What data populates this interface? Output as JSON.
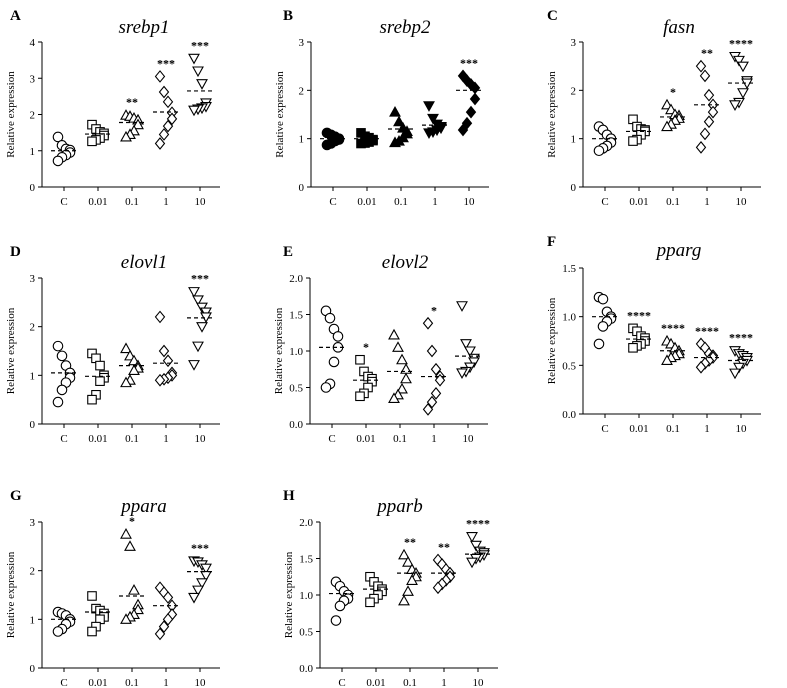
{
  "figure": {
    "chart_data": [
      {
        "type": "scatter",
        "letter": "A",
        "title": "srebp1",
        "ylabel": "Relative expression",
        "categories": [
          "C",
          "0.01",
          "0.1",
          "1",
          "10"
        ],
        "ylim": [
          0,
          4
        ],
        "yticks": [
          0,
          1,
          2,
          3,
          4
        ],
        "ytick_labels": [
          "0",
          "1",
          "2",
          "3",
          "4"
        ],
        "markers": [
          "circle",
          "square",
          "triangle-up",
          "diamond",
          "triangle-down"
        ],
        "fills": [
          "none",
          "none",
          "none",
          "none",
          "none"
        ],
        "points": [
          [
            1.38,
            1.15,
            1.05,
            1.02,
            0.95,
            0.88,
            0.82,
            0.72
          ],
          [
            1.72,
            1.6,
            1.52,
            1.48,
            1.42,
            1.35,
            1.3,
            1.26
          ],
          [
            1.98,
            1.95,
            1.9,
            1.85,
            1.72,
            1.55,
            1.45,
            1.38
          ],
          [
            3.05,
            2.62,
            2.35,
            2.05,
            1.88,
            1.68,
            1.45,
            1.2
          ],
          [
            3.55,
            3.2,
            2.85,
            2.32,
            2.22,
            2.18,
            2.15,
            2.12
          ]
        ],
        "means": [
          1.0,
          1.46,
          1.78,
          2.07,
          2.65
        ],
        "significance": [
          "",
          "",
          "**",
          "***",
          "***"
        ]
      },
      {
        "type": "scatter",
        "letter": "B",
        "title": "srebp2",
        "ylabel": "Relative expression",
        "categories": [
          "C",
          "0.01",
          "0.1",
          "1",
          "10"
        ],
        "ylim": [
          0,
          3
        ],
        "yticks": [
          0,
          1,
          2,
          3
        ],
        "ytick_labels": [
          "0",
          "1",
          "2",
          "3"
        ],
        "markers": [
          "circle",
          "square",
          "triangle-up",
          "triangle-down",
          "diamond"
        ],
        "fills": [
          "#000",
          "#000",
          "#000",
          "#000",
          "#000"
        ],
        "points": [
          [
            1.12,
            1.08,
            1.04,
            1.0,
            0.98,
            0.95,
            0.9,
            0.87
          ],
          [
            1.12,
            1.05,
            1.02,
            0.98,
            0.96,
            0.93,
            0.91,
            0.9
          ],
          [
            1.55,
            1.35,
            1.22,
            1.15,
            1.1,
            1.02,
            0.95,
            0.92
          ],
          [
            1.68,
            1.42,
            1.3,
            1.25,
            1.22,
            1.18,
            1.14,
            1.12
          ],
          [
            2.3,
            2.2,
            2.12,
            2.05,
            1.82,
            1.55,
            1.32,
            1.18
          ]
        ],
        "means": [
          1.0,
          1.0,
          1.2,
          1.28,
          2.0
        ],
        "significance": [
          "",
          "",
          "",
          "",
          "***"
        ]
      },
      {
        "type": "scatter",
        "letter": "C",
        "title": "fasn",
        "ylabel": "Relative expression",
        "categories": [
          "C",
          "0.01",
          "0.1",
          "1",
          "10"
        ],
        "ylim": [
          0,
          3
        ],
        "yticks": [
          0,
          1,
          2,
          3
        ],
        "ytick_labels": [
          "0",
          "1",
          "2",
          "3"
        ],
        "markers": [
          "circle",
          "square",
          "triangle-up",
          "diamond",
          "triangle-down"
        ],
        "fills": [
          "none",
          "none",
          "none",
          "none",
          "none"
        ],
        "points": [
          [
            1.25,
            1.18,
            1.08,
            1.0,
            0.92,
            0.85,
            0.8,
            0.75
          ],
          [
            1.4,
            1.25,
            1.2,
            1.18,
            1.15,
            1.08,
            0.98,
            0.95
          ],
          [
            1.7,
            1.6,
            1.5,
            1.48,
            1.42,
            1.38,
            1.3,
            1.25
          ],
          [
            2.5,
            2.3,
            1.9,
            1.7,
            1.55,
            1.35,
            1.1,
            0.82
          ],
          [
            2.7,
            2.62,
            2.5,
            2.2,
            2.15,
            1.95,
            1.75,
            1.7
          ]
        ],
        "means": [
          1.0,
          1.15,
          1.45,
          1.7,
          2.15
        ],
        "significance": [
          "",
          "",
          "*",
          "**",
          "****"
        ]
      },
      {
        "type": "scatter",
        "letter": "D",
        "title": "elovl1",
        "ylabel": "Relative expression",
        "categories": [
          "C",
          "0.01",
          "0.1",
          "1",
          "10"
        ],
        "ylim": [
          0,
          3
        ],
        "yticks": [
          0,
          1,
          2,
          3
        ],
        "ytick_labels": [
          "0",
          "1",
          "2",
          "3"
        ],
        "markers": [
          "circle",
          "square",
          "triangle-up",
          "diamond",
          "triangle-down"
        ],
        "fills": [
          "none",
          "none",
          "none",
          "none",
          "none"
        ],
        "points": [
          [
            1.6,
            1.4,
            1.2,
            1.05,
            0.95,
            0.85,
            0.7,
            0.45
          ],
          [
            1.45,
            1.35,
            1.2,
            1.0,
            0.95,
            0.88,
            0.6,
            0.5
          ],
          [
            1.55,
            1.4,
            1.3,
            1.2,
            1.15,
            1.1,
            0.9,
            0.85
          ],
          [
            2.2,
            1.5,
            1.3,
            1.05,
            1.0,
            0.95,
            0.92,
            0.9
          ],
          [
            2.72,
            2.55,
            2.4,
            2.3,
            2.2,
            2.0,
            1.6,
            1.22
          ]
        ],
        "means": [
          1.05,
          0.98,
          1.2,
          1.25,
          2.18
        ],
        "significance": [
          "",
          "",
          "",
          "",
          "***"
        ]
      },
      {
        "type": "scatter",
        "letter": "E",
        "title": "elovl2",
        "ylabel": "Relative expression",
        "categories": [
          "C",
          "0.01",
          "0.1",
          "1",
          "10"
        ],
        "ylim": [
          0,
          2
        ],
        "yticks": [
          0,
          0.5,
          1,
          1.5,
          2
        ],
        "ytick_labels": [
          "0.0",
          "0.5",
          "1.0",
          "1.5",
          "2.0"
        ],
        "markers": [
          "circle",
          "square",
          "triangle-up",
          "diamond",
          "triangle-down"
        ],
        "fills": [
          "none",
          "none",
          "none",
          "none",
          "none"
        ],
        "points": [
          [
            1.55,
            1.45,
            1.3,
            1.2,
            1.05,
            0.85,
            0.55,
            0.5
          ],
          [
            0.88,
            0.72,
            0.65,
            0.62,
            0.58,
            0.5,
            0.42,
            0.38
          ],
          [
            1.22,
            1.05,
            0.88,
            0.75,
            0.62,
            0.48,
            0.4,
            0.35
          ],
          [
            1.38,
            1.0,
            0.75,
            0.65,
            0.6,
            0.42,
            0.3,
            0.2
          ],
          [
            1.62,
            1.1,
            1.0,
            0.9,
            0.85,
            0.78,
            0.72,
            0.7
          ]
        ],
        "means": [
          1.05,
          0.6,
          0.72,
          0.65,
          0.93
        ],
        "significance": [
          "",
          "*",
          "",
          "*",
          ""
        ]
      },
      {
        "type": "scatter",
        "letter": "F",
        "title": "pparg",
        "ylabel": "Relative expression",
        "categories": [
          "C",
          "0.01",
          "0.1",
          "1",
          "10"
        ],
        "ylim": [
          0,
          1.5
        ],
        "yticks": [
          0,
          0.5,
          1,
          1.5
        ],
        "ytick_labels": [
          "0.0",
          "0.5",
          "1.0",
          "1.5"
        ],
        "markers": [
          "circle",
          "square",
          "triangle-up",
          "diamond",
          "triangle-down"
        ],
        "fills": [
          "none",
          "none",
          "none",
          "none",
          "none"
        ],
        "points": [
          [
            1.2,
            1.18,
            1.05,
            1.0,
            0.98,
            0.95,
            0.9,
            0.72
          ],
          [
            0.88,
            0.85,
            0.8,
            0.78,
            0.75,
            0.72,
            0.7,
            0.68
          ],
          [
            0.75,
            0.72,
            0.68,
            0.65,
            0.62,
            0.6,
            0.58,
            0.55
          ],
          [
            0.72,
            0.68,
            0.62,
            0.6,
            0.58,
            0.55,
            0.52,
            0.48
          ],
          [
            0.65,
            0.62,
            0.6,
            0.58,
            0.55,
            0.52,
            0.48,
            0.42
          ]
        ],
        "means": [
          1.0,
          0.77,
          0.65,
          0.58,
          0.55
        ],
        "significance": [
          "",
          "****",
          "****",
          "****",
          "****"
        ]
      },
      {
        "type": "scatter",
        "letter": "G",
        "title": "ppara",
        "ylabel": "Relative expression",
        "categories": [
          "C",
          "0.01",
          "0.1",
          "1",
          "10"
        ],
        "ylim": [
          0,
          3
        ],
        "yticks": [
          0,
          1,
          2,
          3
        ],
        "ytick_labels": [
          "0",
          "1",
          "2",
          "3"
        ],
        "markers": [
          "circle",
          "square",
          "triangle-up",
          "diamond",
          "triangle-down"
        ],
        "fills": [
          "none",
          "none",
          "none",
          "none",
          "none"
        ],
        "points": [
          [
            1.15,
            1.12,
            1.08,
            1.0,
            0.95,
            0.9,
            0.8,
            0.75
          ],
          [
            1.48,
            1.22,
            1.18,
            1.12,
            1.05,
            1.0,
            0.85,
            0.75
          ],
          [
            2.75,
            2.5,
            1.6,
            1.3,
            1.2,
            1.1,
            1.05,
            1.0
          ],
          [
            1.65,
            1.55,
            1.45,
            1.28,
            1.1,
            1.0,
            0.85,
            0.7
          ],
          [
            2.2,
            2.18,
            2.12,
            2.05,
            1.9,
            1.75,
            1.6,
            1.45
          ]
        ],
        "means": [
          1.0,
          1.15,
          1.48,
          1.28,
          1.98
        ],
        "significance": [
          "",
          "",
          "*",
          "",
          "***"
        ]
      },
      {
        "type": "scatter",
        "letter": "H",
        "title": "pparb",
        "ylabel": "Relative expression",
        "categories": [
          "C",
          "0.01",
          "0.1",
          "1",
          "10"
        ],
        "ylim": [
          0,
          2
        ],
        "yticks": [
          0,
          0.5,
          1,
          1.5,
          2
        ],
        "ytick_labels": [
          "0.0",
          "0.5",
          "1.0",
          "1.5",
          "2.0"
        ],
        "markers": [
          "circle",
          "square",
          "triangle-up",
          "diamond",
          "triangle-down"
        ],
        "fills": [
          "none",
          "none",
          "none",
          "none",
          "none"
        ],
        "points": [
          [
            1.18,
            1.12,
            1.05,
            1.0,
            0.95,
            0.92,
            0.85,
            0.65
          ],
          [
            1.25,
            1.18,
            1.12,
            1.08,
            1.05,
            1.0,
            0.95,
            0.9
          ],
          [
            1.55,
            1.45,
            1.35,
            1.3,
            1.25,
            1.2,
            1.05,
            0.92
          ],
          [
            1.48,
            1.42,
            1.35,
            1.3,
            1.25,
            1.2,
            1.15,
            1.1
          ],
          [
            1.8,
            1.68,
            1.6,
            1.58,
            1.55,
            1.52,
            1.5,
            1.45
          ]
        ],
        "means": [
          1.02,
          1.08,
          1.3,
          1.3,
          1.56
        ],
        "significance": [
          "",
          "",
          "**",
          "**",
          "****"
        ]
      }
    ]
  }
}
